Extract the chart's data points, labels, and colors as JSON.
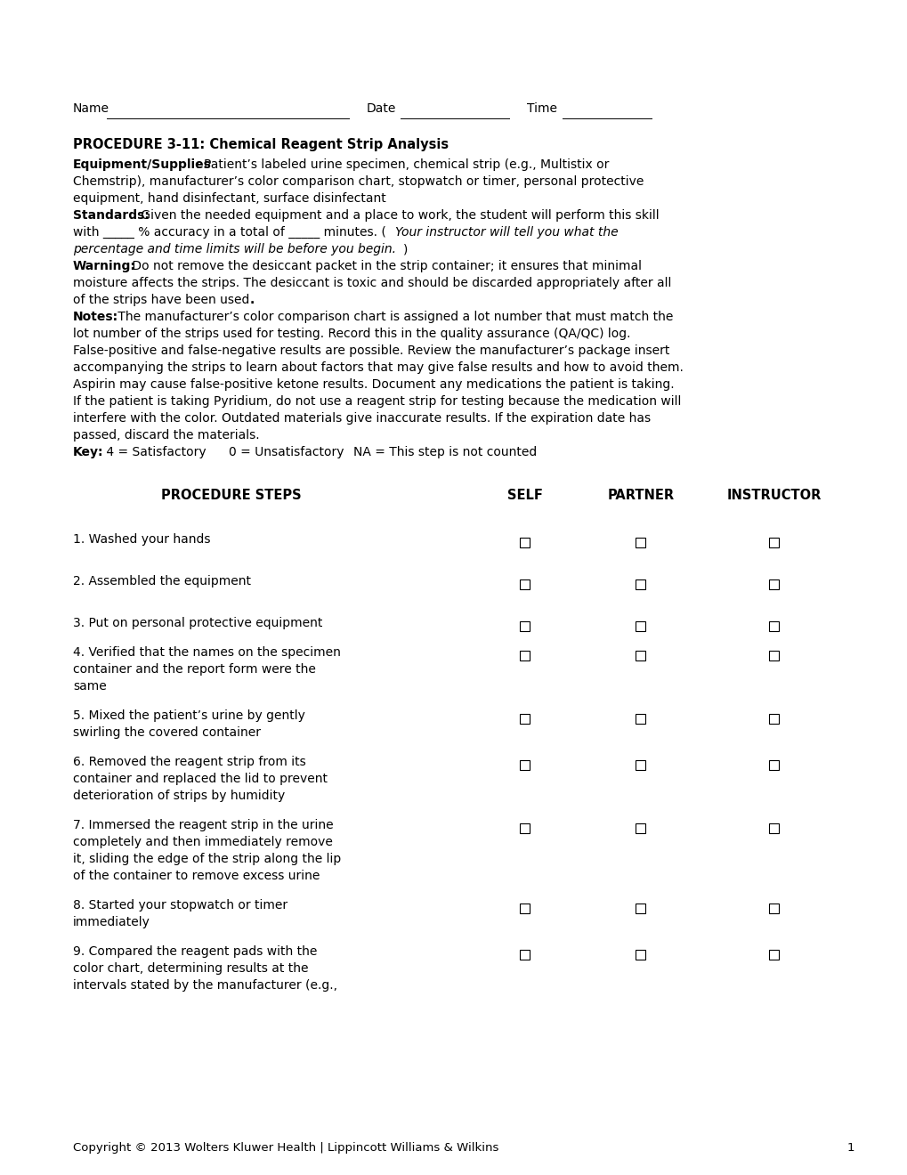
{
  "bg_color": "#ffffff",
  "text_color": "#000000",
  "page_width": 10.2,
  "page_height": 13.2,
  "font_size_body": 10.0,
  "font_size_title": 10.5,
  "title": "PROCEDURE 3-11: Chemical Reagent Strip Analysis",
  "procedure_steps_header": "PROCEDURE STEPS",
  "self_header": "SELF",
  "partner_header": "PARTNER",
  "instructor_header": "INSTRUCTOR",
  "copyright": "Copyright © 2013 Wolters Kluwer Health | Lippincott Williams & Wilkins",
  "page_num": "1"
}
